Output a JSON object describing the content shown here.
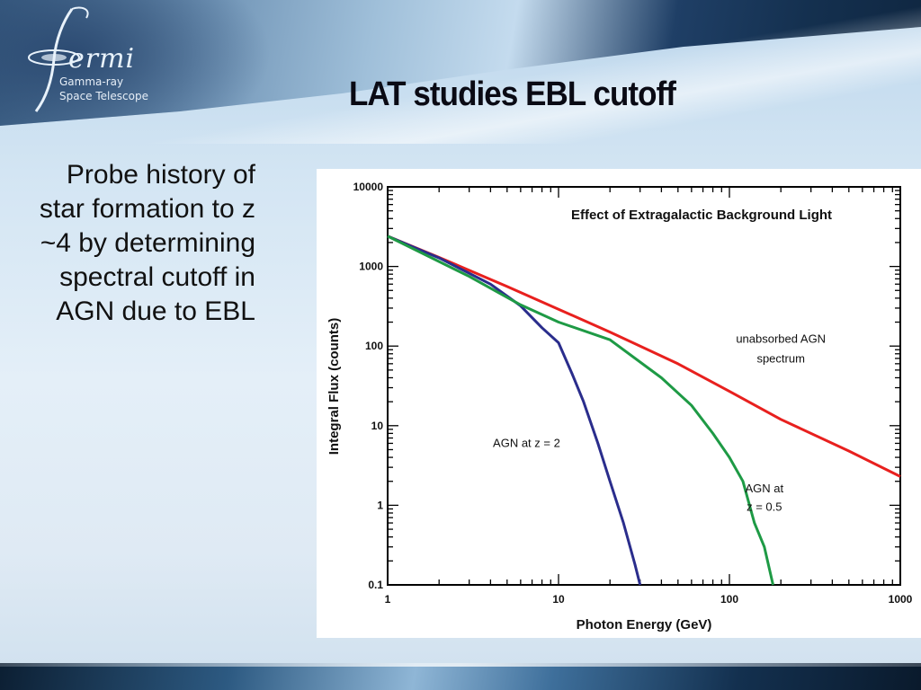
{
  "slide": {
    "title": "LAT studies EBL cutoff",
    "bullet": "Probe history of star formation to z ~4 by determining spectral cutoff in AGN due to EBL"
  },
  "logo": {
    "word": "ermi",
    "line1": "Gamma-ray",
    "line2": "Space Telescope"
  },
  "chart_data": {
    "type": "line",
    "title": "Effect of Extragalactic Background Light",
    "xlabel": "Photon Energy (GeV)",
    "ylabel": "Integral Flux (counts)",
    "xscale": "log",
    "yscale": "log",
    "xlim": [
      1,
      1000
    ],
    "ylim": [
      0.1,
      10000
    ],
    "x_ticks": [
      {
        "value": 1,
        "label": "1"
      },
      {
        "value": 10,
        "label": "10"
      },
      {
        "value": 100,
        "label": "100"
      },
      {
        "value": 1000,
        "label": "1000"
      }
    ],
    "y_ticks": [
      {
        "value": 0.1,
        "label": "0.1"
      },
      {
        "value": 1,
        "label": "1"
      },
      {
        "value": 10,
        "label": "10"
      },
      {
        "value": 100,
        "label": "100"
      },
      {
        "value": 1000,
        "label": "1000"
      },
      {
        "value": 10000,
        "label": "10000"
      }
    ],
    "series": [
      {
        "name": "unabsorbed AGN spectrum",
        "color": "#e8201e",
        "points": [
          [
            1,
            2400
          ],
          [
            2,
            1300
          ],
          [
            5,
            560
          ],
          [
            10,
            290
          ],
          [
            20,
            150
          ],
          [
            50,
            60
          ],
          [
            100,
            27
          ],
          [
            200,
            12
          ],
          [
            500,
            4.8
          ],
          [
            1000,
            2.3
          ]
        ]
      },
      {
        "name": "AGN at z = 2",
        "color": "#2a2d8c",
        "points": [
          [
            1,
            2400
          ],
          [
            2,
            1280
          ],
          [
            4,
            600
          ],
          [
            6,
            320
          ],
          [
            8,
            170
          ],
          [
            10,
            110
          ],
          [
            12,
            45
          ],
          [
            14,
            20
          ],
          [
            17,
            6
          ],
          [
            20,
            2
          ],
          [
            24,
            0.6
          ],
          [
            28,
            0.18
          ],
          [
            30,
            0.1
          ]
        ]
      },
      {
        "name": "AGN at z = 0.5",
        "color": "#1e9a45",
        "points": [
          [
            1,
            2400
          ],
          [
            3,
            750
          ],
          [
            6,
            330
          ],
          [
            10,
            200
          ],
          [
            20,
            120
          ],
          [
            40,
            40
          ],
          [
            60,
            18
          ],
          [
            80,
            8
          ],
          [
            100,
            4
          ],
          [
            120,
            2
          ],
          [
            140,
            0.6
          ],
          [
            160,
            0.3
          ],
          [
            180,
            0.1
          ]
        ]
      }
    ],
    "annotations": [
      {
        "text": "unabsorbed AGN",
        "x": 200,
        "y": 110
      },
      {
        "text": "spectrum",
        "x": 200,
        "y": 62
      },
      {
        "text": "AGN at z = 2",
        "x": 6.5,
        "y": 5.4
      },
      {
        "text": "AGN at",
        "x": 160,
        "y": 1.45
      },
      {
        "text": "z = 0.5",
        "x": 160,
        "y": 0.85
      }
    ],
    "grid": false
  }
}
